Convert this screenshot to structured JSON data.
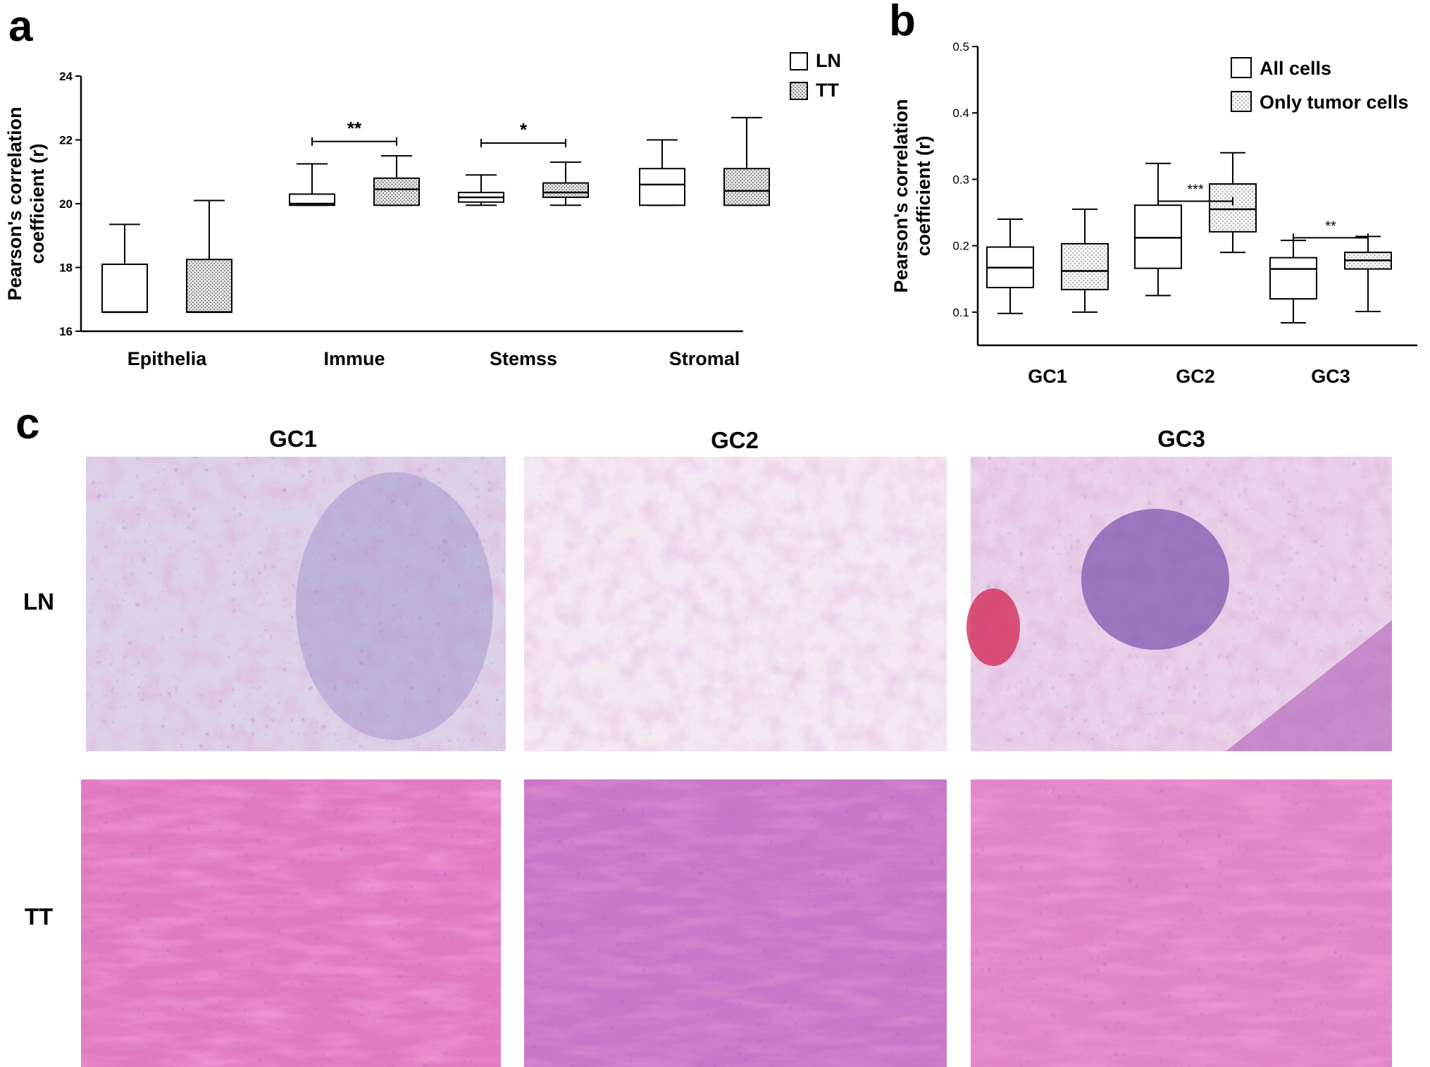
{
  "panel_labels": {
    "a": "a",
    "b": "b",
    "c": "c"
  },
  "colors": {
    "box_tt_fill": "#d6d6d6",
    "box_ln_fill": "#ffffff",
    "axis": "#000000"
  },
  "chart_data": [
    {
      "type": "box",
      "panel": "a",
      "ylabel_line1": "Pearson's correlation",
      "ylabel_line2": "coefficient (r)",
      "xlabel": "",
      "ylim": [
        16,
        24
      ],
      "yticks": [
        "16",
        "18",
        "20",
        "22",
        "24"
      ],
      "categories": [
        "Epithelia",
        "Immue",
        "Stemss",
        "Stromal"
      ],
      "legend_position": "top-right",
      "series": [
        {
          "name": "LN",
          "boxes": [
            {
              "min": 16.6,
              "q1": 16.6,
              "median": 16.6,
              "q3": 18.1,
              "max": 19.35
            },
            {
              "min": 19.95,
              "q1": 19.95,
              "median": 20.0,
              "q3": 20.3,
              "max": 21.25
            },
            {
              "min": 19.95,
              "q1": 20.05,
              "median": 20.2,
              "q3": 20.35,
              "max": 20.9
            },
            {
              "min": 19.95,
              "q1": 19.95,
              "median": 20.6,
              "q3": 21.1,
              "max": 22.0
            }
          ]
        },
        {
          "name": "TT",
          "boxes": [
            {
              "min": 16.6,
              "q1": 16.6,
              "median": 16.6,
              "q3": 18.25,
              "max": 20.1
            },
            {
              "min": 19.95,
              "q1": 19.95,
              "median": 20.45,
              "q3": 20.8,
              "max": 21.5
            },
            {
              "min": 19.95,
              "q1": 20.2,
              "median": 20.35,
              "q3": 20.65,
              "max": 21.3
            },
            {
              "min": 19.95,
              "q1": 19.95,
              "median": 20.4,
              "q3": 21.1,
              "max": 22.7
            }
          ]
        }
      ],
      "significance": [
        {
          "category": "Immue",
          "label": "**",
          "y": 21.95
        },
        {
          "category": "Stemss",
          "label": "*",
          "y": 21.9
        }
      ]
    },
    {
      "type": "box",
      "panel": "b",
      "ylabel_line1": "Pearson's correlation",
      "ylabel_line2": "coefficient (r)",
      "xlabel": "",
      "ylim": [
        0.05,
        0.5
      ],
      "yticks": [
        "0.1",
        "0.2",
        "0.3",
        "0.4",
        "0.5"
      ],
      "categories": [
        "GC1",
        "GC2",
        "GC3"
      ],
      "legend_position": "top-right",
      "series": [
        {
          "name": "All cells",
          "boxes": [
            {
              "min": 0.098,
              "q1": 0.137,
              "median": 0.167,
              "q3": 0.198,
              "max": 0.24
            },
            {
              "min": 0.125,
              "q1": 0.166,
              "median": 0.212,
              "q3": 0.261,
              "max": 0.324
            },
            {
              "min": 0.084,
              "q1": 0.12,
              "median": 0.165,
              "q3": 0.182,
              "max": 0.208
            }
          ]
        },
        {
          "name": "Only tumor cells",
          "boxes": [
            {
              "min": 0.1,
              "q1": 0.134,
              "median": 0.162,
              "q3": 0.203,
              "max": 0.255
            },
            {
              "min": 0.19,
              "q1": 0.221,
              "median": 0.255,
              "q3": 0.293,
              "max": 0.34
            },
            {
              "min": 0.101,
              "q1": 0.165,
              "median": 0.178,
              "q3": 0.19,
              "max": 0.214
            }
          ]
        }
      ],
      "significance": [
        {
          "category": "GC2",
          "label": "***",
          "y": 0.267
        },
        {
          "category": "GC3",
          "label": "**",
          "y": 0.212
        }
      ]
    }
  ],
  "histology": {
    "columns": [
      "GC1",
      "GC2",
      "GC3"
    ],
    "rows": [
      "LN",
      "TT"
    ]
  }
}
